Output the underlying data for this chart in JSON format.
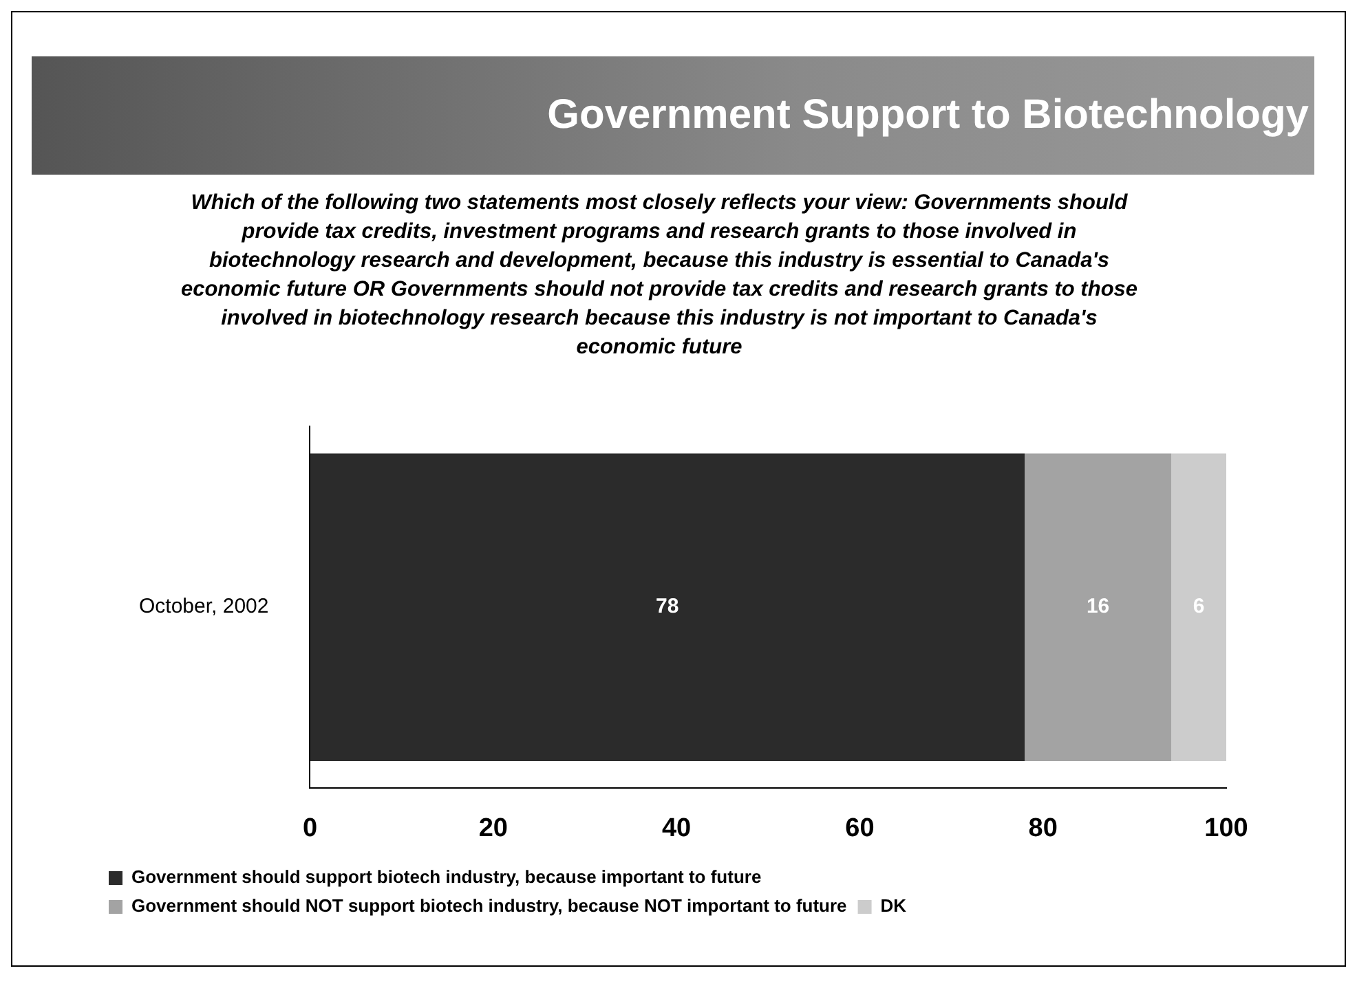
{
  "chart_data": {
    "type": "bar",
    "orientation": "horizontal",
    "stacked": true,
    "title": "Government Support to Biotechnology",
    "subtitle": "Which of the following two statements most closely reflects your view: Governments should provide tax credits, investment programs and research grants to those involved in biotechnology research and development, because this industry is essential to Canada's economic future OR Governments should not provide tax credits and research grants to those involved in biotechnology research because this industry is not important to Canada's economic future",
    "categories": [
      "October, 2002"
    ],
    "series": [
      {
        "name": "Government should support biotech industry, because important to future",
        "color": "#2b2b2b",
        "values": [
          78
        ]
      },
      {
        "name": "Government should NOT support biotech industry, because NOT important to future",
        "color": "#a3a3a3",
        "values": [
          16
        ]
      },
      {
        "name": "DK",
        "color": "#cccccc",
        "values": [
          6
        ]
      }
    ],
    "xlim": [
      0,
      100
    ],
    "xticks": [
      0,
      20,
      40,
      60,
      80,
      100
    ],
    "data_labels": true,
    "legend": "bottom",
    "grid": false
  }
}
